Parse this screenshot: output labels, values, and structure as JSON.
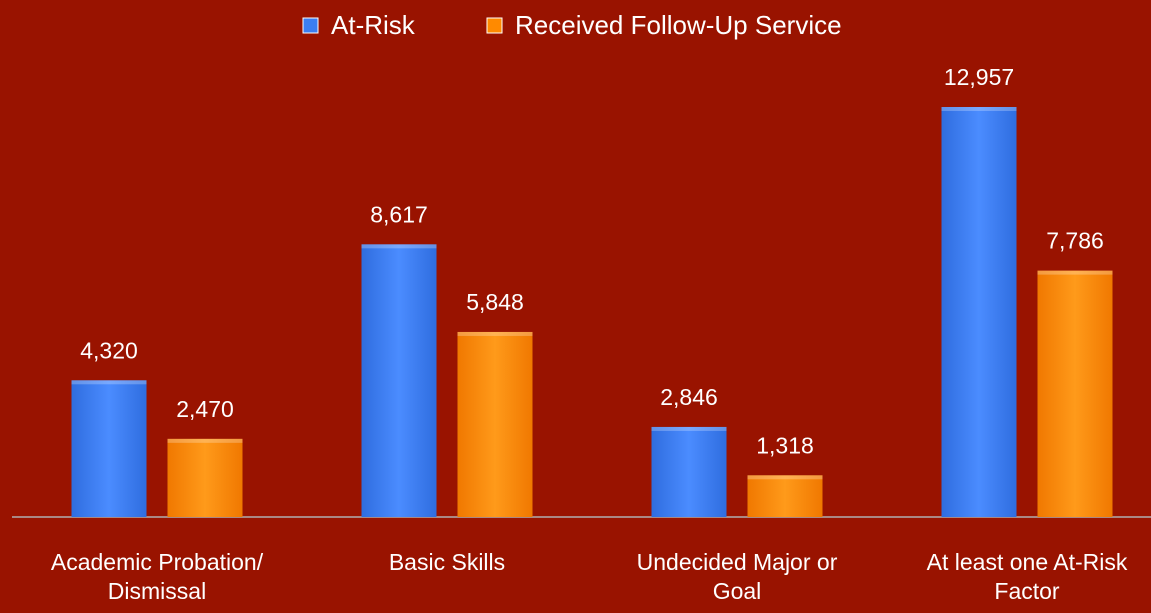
{
  "chart_data": {
    "type": "bar",
    "categories": [
      "Academic Probation/\nDismissal",
      "Basic Skills",
      "Undecided Major or\nGoal",
      "At least one At-Risk\nFactor"
    ],
    "series": [
      {
        "name": "At-Risk",
        "color": "#3b7ef2",
        "values": [
          4320,
          8617,
          2846,
          12957
        ],
        "value_labels": [
          "4,320",
          "8,617",
          "2,846",
          "12,957"
        ]
      },
      {
        "name": "Received Follow-Up Service",
        "color": "#ff8a00",
        "values": [
          2470,
          5848,
          1318,
          7786
        ],
        "value_labels": [
          "2,470",
          "5,848",
          "1,318",
          "7,786"
        ]
      }
    ],
    "legend": "top"
  }
}
